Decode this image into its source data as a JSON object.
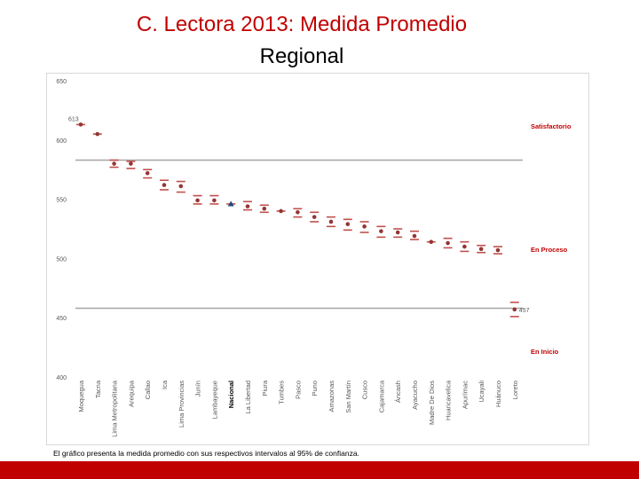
{
  "title": "C. Lectora 2013: Medida Promedio",
  "subtitle": "Regional",
  "footnote": "El gráfico presenta la medida promedio con sus respectivos intervalos al 95% de confianza.",
  "colors": {
    "title": "#c00000",
    "point": "#943634",
    "ci": "#c0504d",
    "nacional": "#1f497d",
    "threshold": "#a6a6a6",
    "band_label": "#c00000",
    "bar": "#c00000"
  },
  "chart_data": {
    "type": "scatter",
    "ylim": [
      400,
      650
    ],
    "yticks": [
      400,
      450,
      500,
      550,
      600,
      650
    ],
    "thresholds": [
      583,
      458
    ],
    "band_labels": [
      "Satisfactorio",
      "En Proceso",
      "En Inicio"
    ],
    "band_label_values": [
      611,
      507,
      421
    ],
    "highlight": "Nacional",
    "categories": [
      "Moquegua",
      "Tacna",
      "Lima Metropolitana",
      "Arequipa",
      "Callao",
      "Ica",
      "Lima Provincias",
      "Junín",
      "Lambayeque",
      "Nacional",
      "La Libertad",
      "Piura",
      "Tumbes",
      "Pasco",
      "Puno",
      "Amazonas",
      "San Martín",
      "Cusco",
      "Cajamarca",
      "Áncash",
      "Ayacucho",
      "Madre De Dios",
      "Huancavelica",
      "Apurímac",
      "Ucayali",
      "Huánuco",
      "Loreto"
    ],
    "values": [
      613,
      605,
      580,
      580,
      572,
      562,
      561,
      549,
      549,
      546,
      544,
      542,
      540,
      539,
      535,
      531,
      529,
      527,
      523,
      522,
      519,
      514,
      513,
      510,
      508,
      507,
      457
    ],
    "ci_low": [
      613,
      605,
      577,
      576,
      568,
      558,
      556,
      546,
      546,
      546,
      541,
      539,
      540,
      535,
      531,
      527,
      524,
      522,
      518,
      518,
      516,
      514,
      509,
      506,
      505,
      504,
      451
    ],
    "ci_high": [
      613,
      605,
      583,
      582,
      575,
      566,
      565,
      553,
      553,
      546,
      548,
      545,
      540,
      542,
      539,
      535,
      533,
      531,
      527,
      525,
      523,
      514,
      517,
      514,
      511,
      510,
      463
    ],
    "annotations": [
      {
        "label": "613",
        "value": 613
      },
      {
        "label": "457",
        "value": 457
      }
    ]
  }
}
